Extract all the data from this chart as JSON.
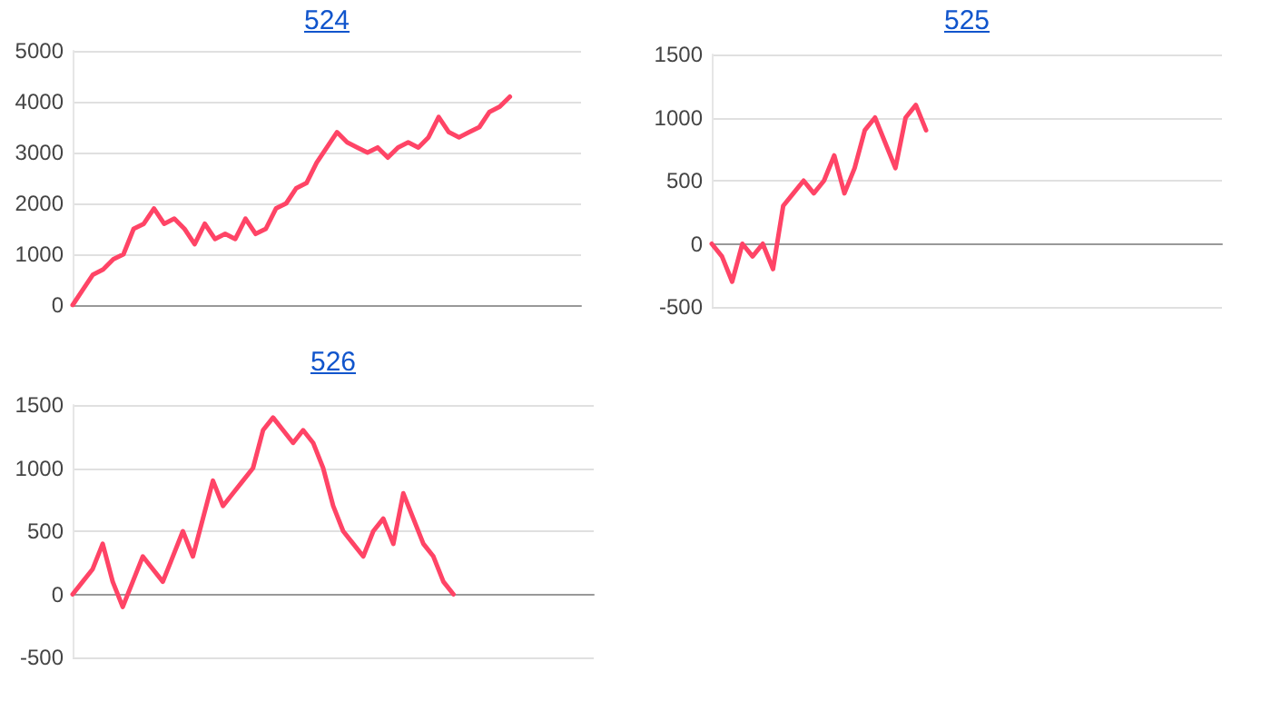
{
  "chart_data": [
    {
      "type": "line",
      "title": "524",
      "categories": [
        null,
        null,
        null,
        null,
        null,
        null,
        null,
        null,
        null,
        null,
        null,
        null,
        null,
        null,
        null,
        null,
        null,
        null,
        null,
        null,
        null,
        null,
        null,
        null,
        null,
        null,
        null,
        null,
        null,
        null,
        null,
        null,
        null,
        null,
        null,
        null,
        null,
        null,
        null,
        null,
        null,
        null,
        null,
        null,
        null,
        null,
        null,
        null,
        null,
        null,
        null
      ],
      "series": [
        {
          "color": "#ff4466",
          "values": [
            0,
            300,
            600,
            700,
            900,
            1000,
            1500,
            1600,
            1900,
            1600,
            1700,
            1500,
            1200,
            1600,
            1300,
            1400,
            1300,
            1700,
            1400,
            1500,
            1900,
            2000,
            2300,
            2400,
            2800,
            3100,
            3400,
            3200,
            3100,
            3000,
            3100,
            2900,
            3100,
            3200,
            3100,
            3300,
            3700,
            3400,
            3300,
            3400,
            3500,
            3800,
            3900,
            4100,
            null,
            null,
            null,
            null,
            null,
            null,
            null
          ]
        }
      ],
      "ylim": [
        0,
        5000
      ],
      "yticks": [
        0,
        1000,
        2000,
        3000,
        4000,
        5000
      ],
      "grid": "y",
      "tick_labels": "y",
      "line_style": "solid"
    },
    {
      "type": "line",
      "title": "525",
      "categories": [
        null,
        null,
        null,
        null,
        null,
        null,
        null,
        null,
        null,
        null,
        null,
        null,
        null,
        null,
        null,
        null,
        null,
        null,
        null,
        null,
        null,
        null,
        null,
        null,
        null,
        null,
        null,
        null,
        null,
        null,
        null,
        null,
        null,
        null,
        null,
        null,
        null,
        null,
        null,
        null,
        null,
        null,
        null,
        null,
        null,
        null,
        null,
        null,
        null,
        null,
        null
      ],
      "series": [
        {
          "color": "#ff4466",
          "values": [
            0,
            -100,
            -300,
            0,
            -100,
            0,
            -200,
            300,
            400,
            500,
            400,
            500,
            700,
            400,
            600,
            900,
            1000,
            800,
            600,
            1000,
            1100,
            900,
            null,
            null,
            null,
            null,
            null,
            null,
            null,
            null,
            null,
            null,
            null,
            null,
            null,
            null,
            null,
            null,
            null,
            null,
            null,
            null,
            null,
            null,
            null,
            null,
            null,
            null,
            null,
            null,
            null
          ]
        }
      ],
      "ylim": [
        -500,
        1500
      ],
      "yticks": [
        -500,
        0,
        500,
        1000,
        1500
      ],
      "grid": "y",
      "tick_labels": "y",
      "line_style": "solid"
    },
    {
      "type": "line",
      "title": "526",
      "categories": [
        null,
        null,
        null,
        null,
        null,
        null,
        null,
        null,
        null,
        null,
        null,
        null,
        null,
        null,
        null,
        null,
        null,
        null,
        null,
        null,
        null,
        null,
        null,
        null,
        null,
        null,
        null,
        null,
        null,
        null,
        null,
        null,
        null,
        null,
        null,
        null,
        null,
        null,
        null,
        null,
        null,
        null,
        null,
        null,
        null,
        null,
        null,
        null,
        null,
        null,
        null,
        null,
        null
      ],
      "series": [
        {
          "color": "#ff4466",
          "values": [
            0,
            100,
            200,
            400,
            100,
            -100,
            100,
            300,
            200,
            100,
            300,
            500,
            300,
            600,
            900,
            700,
            800,
            900,
            1000,
            1300,
            1400,
            1300,
            1200,
            1300,
            1200,
            1000,
            700,
            500,
            400,
            300,
            500,
            600,
            400,
            800,
            600,
            400,
            300,
            100,
            0,
            null,
            null,
            null,
            null,
            null,
            null,
            null,
            null,
            null,
            null,
            null,
            null,
            null,
            null
          ]
        }
      ],
      "ylim": [
        -500,
        1500
      ],
      "yticks": [
        -500,
        0,
        500,
        1000,
        1500
      ],
      "grid": "y",
      "tick_labels": "y",
      "line_style": "solid"
    }
  ]
}
